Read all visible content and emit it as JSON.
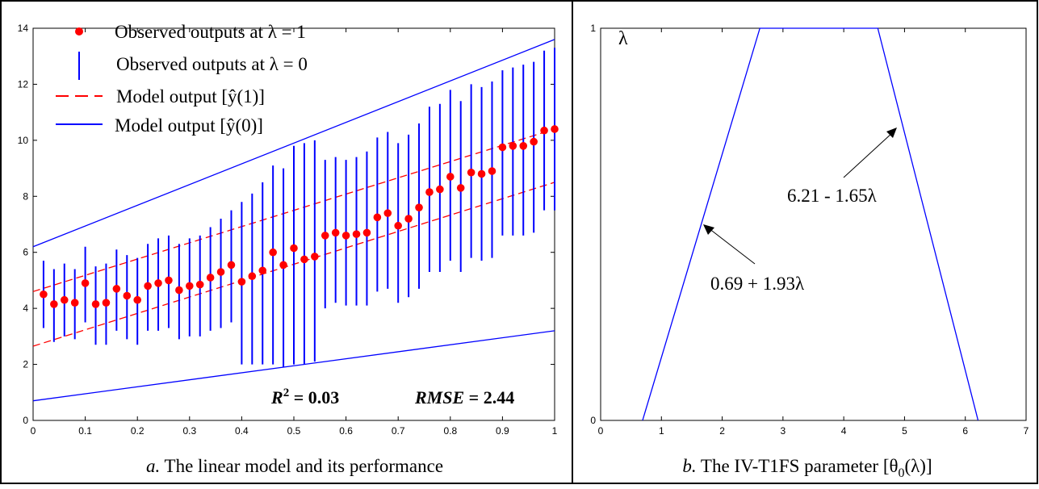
{
  "colors": {
    "observed": "#ff0000",
    "blue": "#0000ff",
    "axis": "#000000"
  },
  "panels": {
    "a": {
      "caption_letter": "a.",
      "caption_text": " The linear model and its performance",
      "stats": {
        "r2_label": "R",
        "r2_sup": "2",
        "r2_value": " = 0.03",
        "rmse_label": "RMSE",
        "rmse_value": " =  2.44"
      },
      "legend": {
        "observed_1": "Observed outputs at λ = 1",
        "observed_0": "Observed outputs at λ = 0",
        "model_1": "Model output [ŷ(1)]",
        "model_0": "Model output [ŷ(0)]"
      }
    },
    "b": {
      "caption_letter": "b.",
      "caption_text": " The IV-T1FS parameter [θ",
      "caption_sub": "0",
      "caption_tail": "(λ)]",
      "ylabel": "λ",
      "annotation_right": "6.21 - 1.65λ",
      "annotation_left": "0.69 + 1.93λ"
    }
  },
  "chart_data": [
    {
      "type": "scatter",
      "xlim": [
        0,
        1
      ],
      "ylim": [
        0,
        14
      ],
      "xticks": [
        0,
        0.1,
        0.2,
        0.3,
        0.4,
        0.5,
        0.6,
        0.7,
        0.8,
        0.9,
        1
      ],
      "xtick_labels": [
        "0",
        "0.1",
        "0.2",
        "0.3",
        "0.4",
        "0.5",
        "0.6",
        "0.7",
        "0.8",
        "0.9",
        "1"
      ],
      "yticks": [
        0,
        2,
        4,
        6,
        8,
        10,
        12,
        14
      ],
      "ytick_labels": [
        "0",
        "2",
        "4",
        "6",
        "8",
        "10",
        "12",
        "14"
      ],
      "x": [
        0.02,
        0.04,
        0.06,
        0.08,
        0.1,
        0.12,
        0.14,
        0.16,
        0.18,
        0.2,
        0.22,
        0.24,
        0.26,
        0.28,
        0.3,
        0.32,
        0.34,
        0.36,
        0.38,
        0.4,
        0.42,
        0.44,
        0.46,
        0.48,
        0.5,
        0.52,
        0.54,
        0.56,
        0.58,
        0.6,
        0.62,
        0.64,
        0.66,
        0.68,
        0.7,
        0.72,
        0.74,
        0.76,
        0.78,
        0.8,
        0.82,
        0.84,
        0.86,
        0.88,
        0.9,
        0.92,
        0.94,
        0.96,
        0.98,
        1.0
      ],
      "series": [
        {
          "name": "Observed outputs at λ = 1",
          "kind": "points",
          "values": [
            4.5,
            4.15,
            4.3,
            4.2,
            4.9,
            4.15,
            4.2,
            4.7,
            4.45,
            4.3,
            4.8,
            4.9,
            5.0,
            4.65,
            4.8,
            4.85,
            5.1,
            5.3,
            5.55,
            4.95,
            5.15,
            5.35,
            6.0,
            5.55,
            6.15,
            5.75,
            5.85,
            6.6,
            6.7,
            6.6,
            6.65,
            6.7,
            7.25,
            7.4,
            6.95,
            7.2,
            7.6,
            8.15,
            8.25,
            8.7,
            8.3,
            8.85,
            8.8,
            8.9,
            9.75,
            9.8,
            9.8,
            9.95,
            10.35,
            10.4
          ]
        },
        {
          "name": "Observed outputs at λ = 0",
          "kind": "intervals",
          "lower": [
            3.3,
            2.8,
            3.0,
            2.9,
            3.5,
            2.7,
            2.7,
            3.2,
            2.9,
            2.7,
            3.2,
            3.2,
            3.3,
            2.9,
            3.0,
            3.0,
            3.2,
            3.3,
            3.5,
            2.0,
            2.0,
            2.0,
            2.0,
            1.9,
            2.0,
            2.0,
            2.1,
            4.0,
            4.2,
            4.1,
            4.1,
            4.1,
            4.6,
            4.7,
            4.2,
            4.4,
            4.7,
            5.3,
            5.3,
            5.7,
            5.3,
            5.8,
            5.7,
            5.8,
            6.6,
            6.6,
            6.6,
            6.7,
            7.5,
            7.5
          ],
          "upper": [
            5.7,
            5.4,
            5.6,
            5.4,
            6.2,
            5.5,
            5.6,
            6.1,
            5.9,
            5.8,
            6.3,
            6.5,
            6.6,
            6.3,
            6.5,
            6.6,
            6.9,
            7.2,
            7.5,
            7.8,
            8.1,
            8.5,
            9.1,
            9.0,
            9.8,
            9.9,
            10.0,
            9.3,
            9.4,
            9.3,
            9.4,
            9.6,
            10.1,
            10.3,
            9.9,
            10.2,
            10.6,
            11.2,
            11.3,
            11.8,
            11.4,
            12.0,
            11.9,
            12.1,
            12.5,
            12.6,
            12.7,
            12.8,
            13.2,
            13.3
          ]
        },
        {
          "name": "Model output [ŷ(1)] upper",
          "kind": "dashed-line",
          "x": [
            0,
            1
          ],
          "values": [
            4.6,
            10.4
          ]
        },
        {
          "name": "Model output [ŷ(1)] lower",
          "kind": "dashed-line",
          "x": [
            0,
            1
          ],
          "values": [
            2.65,
            8.5
          ]
        },
        {
          "name": "Model output [ŷ(0)] upper",
          "kind": "line",
          "x": [
            0,
            1
          ],
          "values": [
            6.2,
            13.6
          ]
        },
        {
          "name": "Model output [ŷ(0)] lower",
          "kind": "line",
          "x": [
            0,
            1
          ],
          "values": [
            0.7,
            3.2
          ]
        }
      ]
    },
    {
      "type": "line",
      "xlim": [
        0,
        7
      ],
      "ylim": [
        0,
        1
      ],
      "xticks": [
        0,
        1,
        2,
        3,
        4,
        5,
        6,
        7
      ],
      "xtick_labels": [
        "0",
        "1",
        "2",
        "3",
        "4",
        "5",
        "6",
        "7"
      ],
      "yticks": [
        0,
        1
      ],
      "ytick_labels": [
        "0",
        "1"
      ],
      "ylabel": "λ",
      "series": [
        {
          "name": "trapezoid",
          "x": [
            0.69,
            2.62,
            4.56,
            6.21
          ],
          "values": [
            0,
            1,
            1,
            0
          ]
        }
      ],
      "annotations": [
        {
          "text": "6.21 - 1.65λ",
          "target": [
            4.93,
            0.78
          ]
        },
        {
          "text": "0.69 + 1.93λ",
          "target": [
            1.75,
            0.55
          ]
        }
      ]
    }
  ]
}
